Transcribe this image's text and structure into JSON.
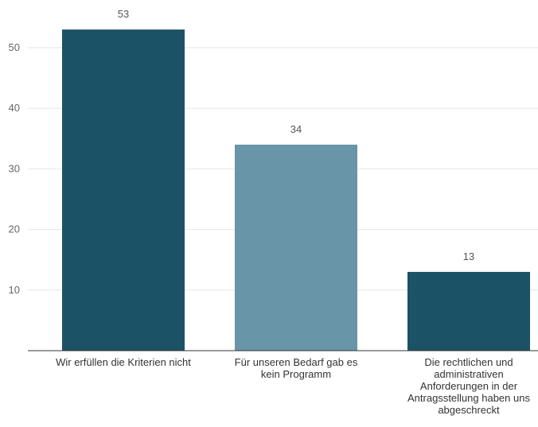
{
  "chart_data": {
    "type": "bar",
    "title": "",
    "xlabel": "",
    "ylabel": "",
    "categories": [
      "Wir erfüllen die Kriterien nicht",
      "Für unseren Bedarf gab es kein Programm",
      "Die rechtlichen und administrativen Anforderungen in der Antragsstellung haben uns abgeschreckt"
    ],
    "values": [
      53,
      34,
      13
    ],
    "value_labels": [
      "53",
      "34",
      "13"
    ],
    "yticks": [
      10,
      20,
      30,
      40,
      50
    ],
    "ytick_labels": [
      "10",
      "20",
      "30",
      "40",
      "50"
    ],
    "ylim": [
      0,
      55
    ],
    "grid": true,
    "legend": "none",
    "colors": [
      "#1c5266",
      "#6895a8",
      "#1c5266"
    ]
  }
}
